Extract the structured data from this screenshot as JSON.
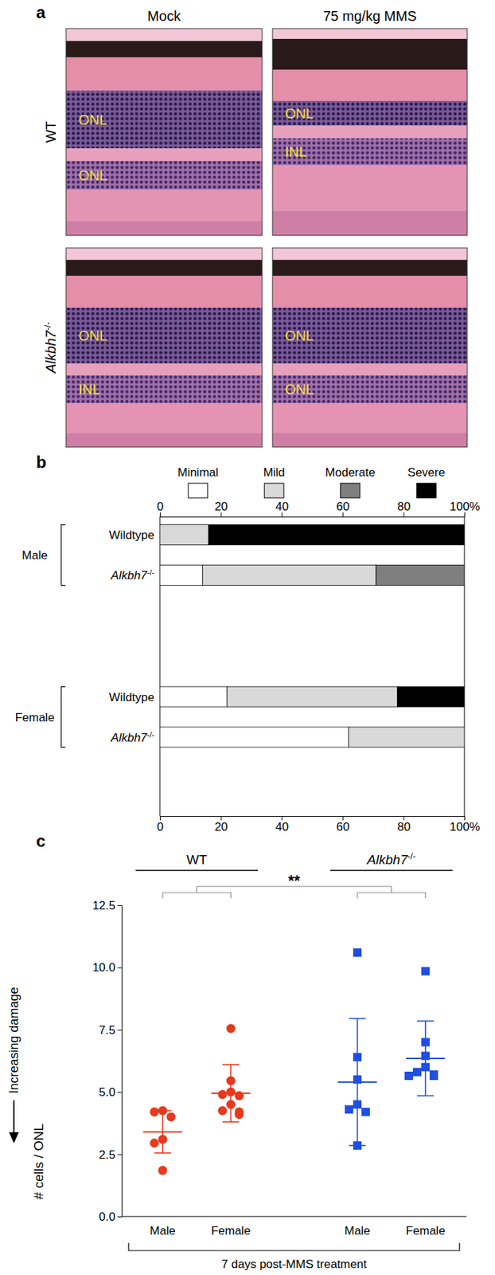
{
  "chart_data": [
    {
      "type": "image",
      "panel": "a",
      "columns": [
        "Mock",
        "75 mg/kg MMS"
      ],
      "rows": [
        "WT",
        "Alkbh7-/-"
      ],
      "layer_labels": [
        [
          [
            "ONL",
            "ONL"
          ],
          [
            "ONL",
            "INL"
          ]
        ],
        [
          [
            "ONL",
            "INL"
          ],
          [
            "ONL",
            "ONL"
          ]
        ]
      ]
    },
    {
      "type": "bar",
      "panel": "b",
      "orientation": "horizontal",
      "stacked": true,
      "legend": "top",
      "groups": [
        "Male",
        "Female"
      ],
      "categories": [
        "Wildtype",
        "Alkbh7-/-"
      ],
      "series": [
        {
          "name": "Minimal",
          "color": "#ffffff",
          "values": [
            [
              0,
              14
            ],
            [
              22,
              62
            ]
          ]
        },
        {
          "name": "Mild",
          "color": "#d9d9d9",
          "values": [
            [
              16,
              57
            ],
            [
              56,
              38
            ]
          ]
        },
        {
          "name": "Moderate",
          "color": "#7f7f7f",
          "values": [
            [
              0,
              29
            ],
            [
              0,
              0
            ]
          ]
        },
        {
          "name": "Severe",
          "color": "#000000",
          "values": [
            [
              84,
              0
            ],
            [
              22,
              0
            ]
          ]
        }
      ],
      "xlim": [
        0,
        100
      ],
      "xticks": [
        0,
        20,
        40,
        60,
        80,
        {
          "value": 100,
          "label": "100%"
        }
      ]
    },
    {
      "type": "scatter",
      "panel": "c",
      "categories": [
        "Male",
        "Female"
      ],
      "series": [
        {
          "name": "WT",
          "color": "#e8391d",
          "marker": "circle",
          "values": [
            [
              4.25,
              4.2,
              4.0,
              3.1,
              2.95,
              1.85
            ],
            [
              7.55,
              5.45,
              5.0,
              4.9,
              4.85,
              4.5,
              4.25,
              4.2,
              4.1
            ]
          ],
          "mean": [
            3.4,
            4.95
          ],
          "sd": [
            0.85,
            1.15
          ]
        },
        {
          "name": "Alkbh7-/-",
          "color": "#1f4fe0",
          "marker": "square",
          "values": [
            [
              10.6,
              6.4,
              5.5,
              4.5,
              4.3,
              4.2,
              2.85
            ],
            [
              9.85,
              7.0,
              6.45,
              6.0,
              5.8,
              5.7,
              5.65,
              5.65
            ]
          ],
          "mean": [
            5.4,
            6.35
          ],
          "sd": [
            2.55,
            1.5
          ]
        }
      ],
      "ylim": [
        0,
        12.5
      ],
      "yticks": [
        {
          "value": 0,
          "label": "0.0"
        },
        2.5,
        {
          "value": 5,
          "label": "5.0"
        },
        7.5,
        {
          "value": 10,
          "label": "10.0"
        },
        12.5
      ],
      "y_label": "# cells / ONL",
      "annotation": "Increasing damage",
      "significance": "**",
      "x_label": "7 days post-MMS treatment"
    }
  ]
}
